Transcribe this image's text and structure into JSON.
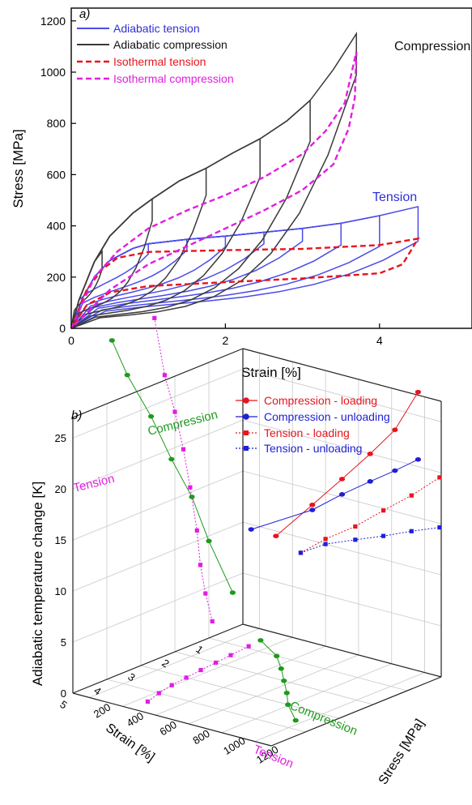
{
  "chart_data": [
    {
      "type": "line",
      "panel_label": "a)",
      "xlabel": "Strain [%]",
      "ylabel": "Stress [MPa]",
      "xlim": [
        0,
        5.2
      ],
      "ylim": [
        0,
        1250
      ],
      "x_ticks": [
        "0",
        "2",
        "4"
      ],
      "y_ticks": [
        "0",
        "200",
        "400",
        "600",
        "800",
        "1000",
        "1200"
      ],
      "grid": false,
      "legend_position": "top-left",
      "legend": [
        "Adiabatic tension",
        "Adiabatic compression",
        "Isothermal tension",
        "Isothermal compression"
      ],
      "annotations": [
        "Compression",
        "Tension"
      ],
      "colors": {
        "adiabatic_tension": "#4b4bea",
        "adiabatic_compression": "#3a3a3a",
        "isothermal_tension": "#e8141e",
        "isothermal_compression": "#e11ee1",
        "label_tension": "#2f2fd6",
        "label_compression": "#111111"
      },
      "series": [
        {
          "name": "Adiabatic tension",
          "style": "solid",
          "loading": [
            [
              0,
              0
            ],
            [
              0.15,
              120
            ],
            [
              0.3,
              200
            ],
            [
              0.5,
              265
            ],
            [
              0.8,
              312
            ],
            [
              1.0,
              330
            ],
            [
              1.5,
              347
            ],
            [
              2.0,
              360
            ],
            [
              2.5,
              375
            ],
            [
              3.0,
              390
            ],
            [
              3.5,
              410
            ],
            [
              4.0,
              440
            ],
            [
              4.5,
              475
            ]
          ],
          "loops": [
            {
              "max_strain": 1.0,
              "peak": 330,
              "drop": 290,
              "base": 230
            },
            {
              "max_strain": 1.5,
              "peak": 347,
              "drop": 305,
              "base": 205
            },
            {
              "max_strain": 2.0,
              "peak": 360,
              "drop": 318,
              "base": 190
            },
            {
              "max_strain": 2.5,
              "peak": 375,
              "drop": 330,
              "base": 180
            },
            {
              "max_strain": 3.0,
              "peak": 390,
              "drop": 340,
              "base": 170
            },
            {
              "max_strain": 3.5,
              "peak": 410,
              "drop": 325,
              "base": 162
            },
            {
              "max_strain": 4.0,
              "peak": 440,
              "drop": 320,
              "base": 150
            },
            {
              "max_strain": 4.5,
              "peak": 475,
              "drop": 340,
              "base": 140
            }
          ]
        },
        {
          "name": "Adiabatic compression",
          "style": "solid",
          "loading": [
            [
              0,
              0
            ],
            [
              0.1,
              110
            ],
            [
              0.3,
              260
            ],
            [
              0.5,
              360
            ],
            [
              0.8,
              450
            ],
            [
              1.05,
              505
            ],
            [
              1.4,
              575
            ],
            [
              1.75,
              625
            ],
            [
              2.1,
              685
            ],
            [
              2.45,
              740
            ],
            [
              2.8,
              810
            ],
            [
              3.1,
              890
            ],
            [
              3.4,
              1010
            ],
            [
              3.7,
              1150
            ]
          ],
          "loops": [
            {
              "max_strain": 0.4,
              "peak": 300,
              "drop": 230,
              "base": 145
            },
            {
              "max_strain": 1.05,
              "peak": 505,
              "drop": 420,
              "base": 125
            },
            {
              "max_strain": 1.75,
              "peak": 625,
              "drop": 520,
              "base": 112
            },
            {
              "max_strain": 2.45,
              "peak": 740,
              "drop": 590,
              "base": 100
            },
            {
              "max_strain": 3.1,
              "peak": 890,
              "drop": 730,
              "base": 90
            },
            {
              "max_strain": 3.7,
              "peak": 1150,
              "drop": 990,
              "base": 85
            }
          ]
        },
        {
          "name": "Isothermal tension",
          "style": "dashed",
          "loading": [
            [
              0,
              0
            ],
            [
              0.2,
              150
            ],
            [
              0.4,
              230
            ],
            [
              0.6,
              275
            ],
            [
              1.0,
              298
            ],
            [
              2.0,
              305
            ],
            [
              3.0,
              310
            ],
            [
              4.0,
              325
            ],
            [
              4.5,
              350
            ]
          ],
          "unloading": [
            [
              4.5,
              350
            ],
            [
              4.3,
              250
            ],
            [
              4.0,
              215
            ],
            [
              3.0,
              195
            ],
            [
              2.0,
              180
            ],
            [
              1.0,
              165
            ],
            [
              0.5,
              140
            ],
            [
              0.2,
              90
            ],
            [
              0,
              0
            ]
          ]
        },
        {
          "name": "Isothermal compression",
          "style": "dashed",
          "loading": [
            [
              0,
              0
            ],
            [
              0.3,
              200
            ],
            [
              0.6,
              300
            ],
            [
              1.0,
              390
            ],
            [
              1.5,
              460
            ],
            [
              2.0,
              520
            ],
            [
              2.5,
              590
            ],
            [
              3.0,
              680
            ],
            [
              3.3,
              770
            ],
            [
              3.55,
              880
            ],
            [
              3.7,
              1080
            ]
          ],
          "unloading": [
            [
              3.7,
              1080
            ],
            [
              3.68,
              900
            ],
            [
              3.6,
              780
            ],
            [
              3.4,
              640
            ],
            [
              3.0,
              540
            ],
            [
              2.5,
              460
            ],
            [
              2.0,
              390
            ],
            [
              1.5,
              320
            ],
            [
              1.0,
              250
            ],
            [
              0.5,
              150
            ],
            [
              0,
              0
            ]
          ]
        }
      ]
    },
    {
      "type": "scatter",
      "projection": "3d",
      "panel_label": "b)",
      "xlabel": "Strain [%]",
      "ylabel": "Stress [MPa]",
      "zlabel": "Adiabatic temperature change [K]",
      "xlim": [
        0,
        5
      ],
      "ylim": [
        100,
        1300
      ],
      "zlim": [
        0,
        27
      ],
      "x_ticks": [
        "1",
        "2",
        "3",
        "4",
        "5"
      ],
      "y_ticks": [
        "200",
        "400",
        "600",
        "800",
        "1000",
        "1200"
      ],
      "z_ticks": [
        "0",
        "5",
        "10",
        "15",
        "20",
        "25"
      ],
      "grid": true,
      "legend_position": "top-right",
      "legend": [
        "Compression - loading",
        "Compression - unloading",
        "Tension - loading",
        "Tension - unloading"
      ],
      "annotations": [
        "Compression",
        "Tension",
        "Compression",
        "Tension"
      ],
      "colors": {
        "compression": "#1e9a1e",
        "tension": "#e11ee1",
        "loading": "#e8141e",
        "unloading": "#1f1fd6"
      },
      "strain_temperature": [
        {
          "name": "Compression",
          "strain": [
            0.3,
            1.0,
            1.5,
            2.1,
            2.7,
            3.4,
            3.85
          ],
          "dT": [
            3.5,
            9.5,
            14.5,
            19.0,
            24.0,
            29.0,
            33.0
          ]
        },
        {
          "name": "Tension",
          "strain": [
            0.9,
            1.1,
            1.25,
            1.35,
            1.55,
            1.75,
            2.0,
            2.3,
            2.6
          ],
          "dT": [
            1.5,
            4.5,
            7.5,
            11.0,
            15.5,
            19.5,
            23.5,
            27.5,
            33.5
          ]
        }
      ],
      "strain_stress_base": [
        {
          "name": "Compression",
          "strain": [
            0.5,
            1.0,
            1.5,
            2.0,
            2.5,
            3.0,
            3.6
          ],
          "stress": [
            310,
            510,
            640,
            760,
            880,
            990,
            1160
          ]
        },
        {
          "name": "Tension",
          "strain": [
            0.9,
            1.5,
            2.0,
            2.5,
            3.0,
            3.5,
            4.0,
            4.5
          ],
          "stress": [
            320,
            335,
            348,
            360,
            375,
            390,
            415,
            450
          ]
        }
      ],
      "stress_temperature": [
        {
          "name": "Compression - loading",
          "stress": [
            300,
            520,
            700,
            870,
            1020,
            1160
          ],
          "dT": [
            9.5,
            13.5,
            16.8,
            20.0,
            23.0,
            27.3
          ]
        },
        {
          "name": "Compression - unloading",
          "stress": [
            150,
            520,
            700,
            870,
            1020,
            1160
          ],
          "dT": [
            9.5,
            13.0,
            15.3,
            17.3,
            19.0,
            20.7
          ]
        },
        {
          "name": "Tension - loading",
          "stress": [
            450,
            600,
            780,
            950,
            1120,
            1290
          ],
          "dT": [
            8.5,
            10.5,
            12.5,
            14.8,
            17.0,
            19.5
          ]
        },
        {
          "name": "Tension - unloading",
          "stress": [
            450,
            600,
            780,
            950,
            1120,
            1290
          ],
          "dT": [
            8.5,
            10.0,
            11.2,
            12.3,
            13.5,
            14.6
          ]
        }
      ]
    }
  ]
}
